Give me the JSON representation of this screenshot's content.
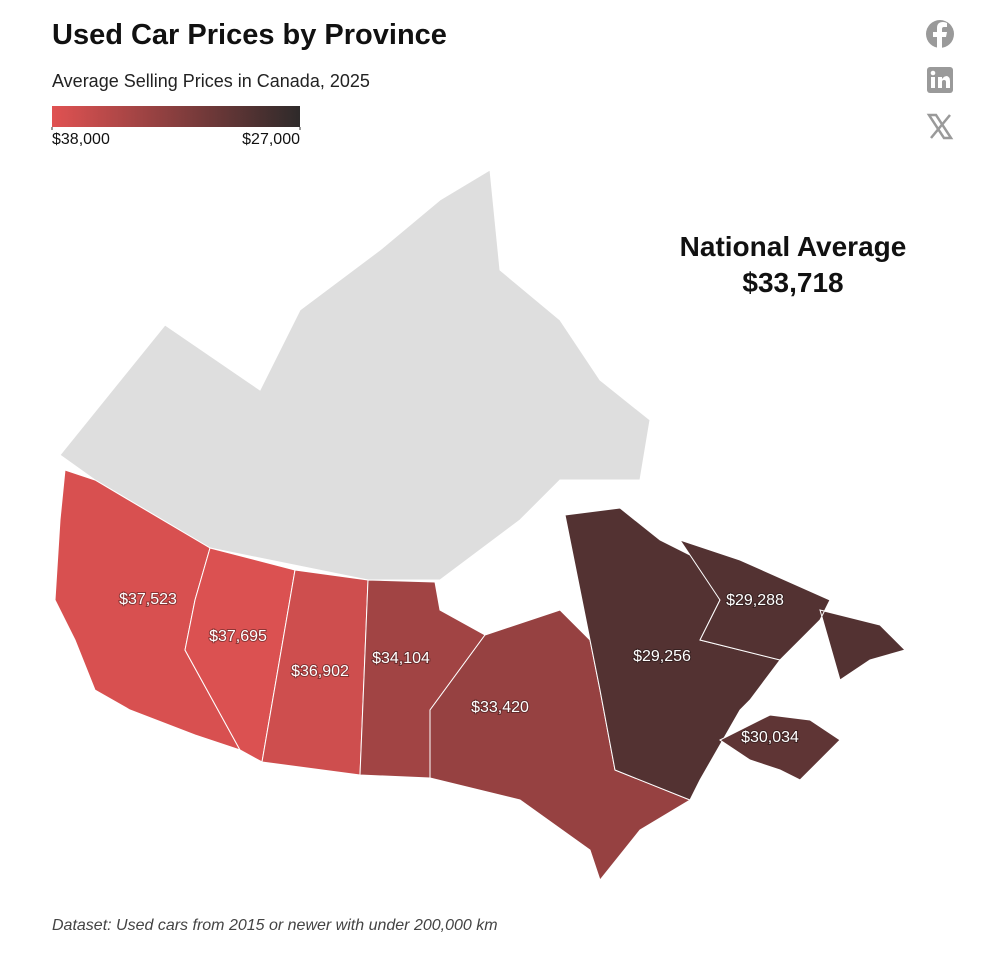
{
  "chart_data": {
    "type": "choropleth",
    "title": "Used Car Prices by Province",
    "subtitle": "Average Selling Prices in Canada, 2025",
    "colorscale": {
      "colors": [
        "#e05252",
        "#2e2a2a"
      ],
      "ticks": [
        {
          "value": 38000,
          "label": "$38,000"
        },
        {
          "value": 27000,
          "label": "$27,000"
        }
      ]
    },
    "values": [
      37523,
      37695,
      36902,
      34104,
      33420,
      29256,
      29288,
      30034
    ],
    "value_labels": [
      "$37,523",
      "$37,695",
      "$36,902",
      "$34,104",
      "$33,420",
      "$29,256",
      "$29,288",
      "$30,034"
    ],
    "annotation": {
      "label": "National Average",
      "value": 33718,
      "value_label": "$33,718"
    },
    "note": "Dataset: Used cars from 2015 or newer with under 200,000 km"
  }
}
